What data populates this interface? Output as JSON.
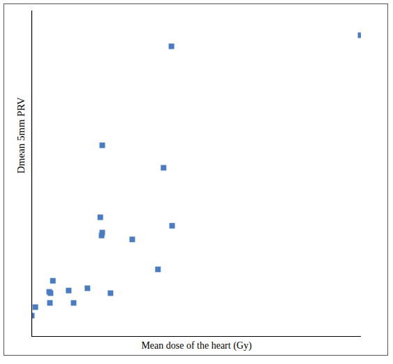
{
  "chart_data": {
    "type": "scatter",
    "x_label": "Mean dose of the heart (Gy)",
    "y_label": "Dmean 5mm PRV",
    "x": [
      0.0,
      0.11,
      0.64,
      0.53,
      0.57,
      0.55,
      1.12,
      1.27,
      1.69,
      2.39,
      2.14,
      2.08,
      2.14,
      2.12,
      3.05,
      3.83,
      4.0,
      4.26,
      4.24,
      9.98
    ],
    "values": [
      0.64,
      0.9,
      1.71,
      1.37,
      1.33,
      1.03,
      1.41,
      1.03,
      1.48,
      1.33,
      5.87,
      3.66,
      3.19,
      3.1,
      2.98,
      2.06,
      5.18,
      3.4,
      8.91,
      9.25
    ],
    "xlim": [
      0,
      10
    ],
    "ylim": [
      0,
      10
    ],
    "color": "#4a7cc4",
    "marker": "square",
    "tick_labels": false,
    "grid": false
  }
}
